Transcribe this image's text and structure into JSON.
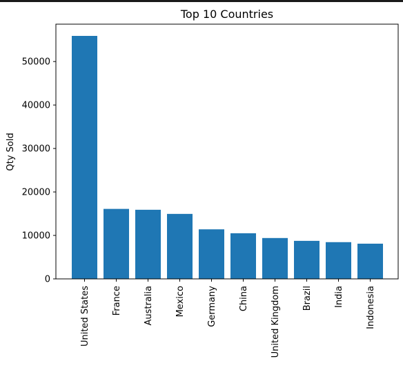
{
  "chart_data": {
    "type": "bar",
    "title": "Top 10 Countries",
    "xlabel": "",
    "ylabel": "Qty Sold",
    "categories": [
      "United States",
      "France",
      "Australia",
      "Mexico",
      "Germany",
      "China",
      "United Kingdom",
      "Brazil",
      "India",
      "Indonesia"
    ],
    "values": [
      55900,
      16100,
      15900,
      14950,
      11400,
      10500,
      9400,
      8750,
      8450,
      8100
    ],
    "ylim": [
      0,
      58600
    ],
    "yticks": [
      0,
      10000,
      20000,
      30000,
      40000,
      50000
    ],
    "grid": false,
    "legend": "none",
    "bar_color": "#1f77b4",
    "axis_color": "#000000"
  }
}
